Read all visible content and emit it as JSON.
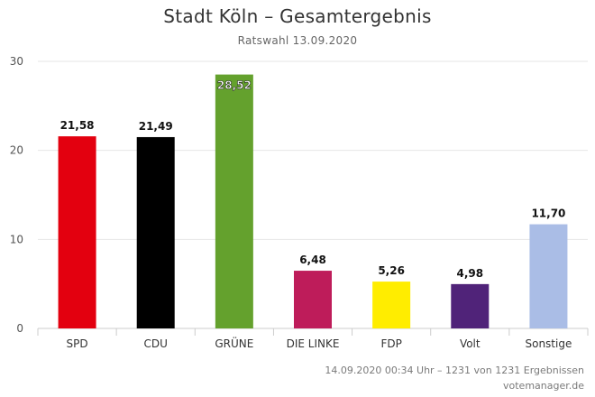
{
  "chart_data": {
    "type": "bar",
    "title": "Stadt Köln – Gesamtergebnis",
    "subtitle": "Ratswahl 13.09.2020",
    "categories": [
      "SPD",
      "CDU",
      "GRÜNE",
      "DIE LINKE",
      "FDP",
      "Volt",
      "Sonstige"
    ],
    "values": [
      21.58,
      21.49,
      28.52,
      6.48,
      5.26,
      4.98,
      11.7
    ],
    "value_labels": [
      "21,58",
      "21,49",
      "28,52",
      "6,48",
      "5,26",
      "4,98",
      "11,70"
    ],
    "colors": [
      "#e3000f",
      "#000000",
      "#64a12d",
      "#be1c5a",
      "#ffed00",
      "#502379",
      "#aabde6"
    ],
    "ylim": [
      0,
      30
    ],
    "yticks": [
      0,
      10,
      20,
      30
    ],
    "ytick_labels": [
      "0",
      "10",
      "20",
      "30"
    ],
    "grid": true,
    "xlabel": "",
    "ylabel": ""
  },
  "footer": {
    "status": "14.09.2020 00:34 Uhr – 1231 von 1231 Ergebnissen",
    "source": "votemanager.de"
  }
}
